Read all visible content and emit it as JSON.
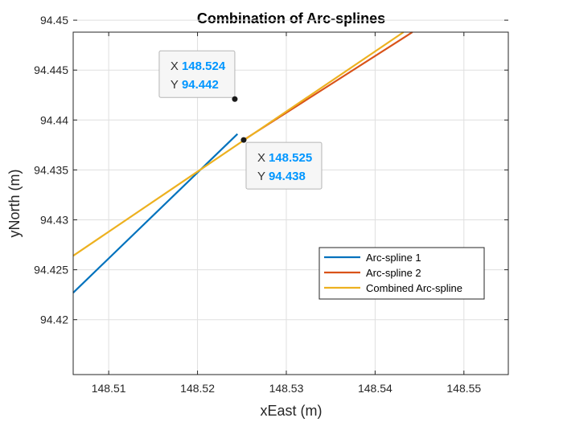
{
  "chart_data": {
    "type": "line",
    "title": "Combination of Arc-splines",
    "xlabel": "xEast (m)",
    "ylabel": "yNorth (m)",
    "xlim": [
      148.506,
      148.555
    ],
    "ylim": [
      94.4145,
      94.4488
    ],
    "xticks": [
      148.51,
      148.52,
      148.53,
      148.54,
      148.55
    ],
    "xtick_labels": [
      "148.51",
      "148.52",
      "148.53",
      "148.54",
      "148.55"
    ],
    "yticks": [
      94.42,
      94.425,
      94.43,
      94.435,
      94.44,
      94.445,
      94.45
    ],
    "ytick_labels": [
      "94.42",
      "94.425",
      "94.43",
      "94.435",
      "94.44",
      "94.445",
      "94.45"
    ],
    "grid": true,
    "legend_position": "lower-right",
    "series": [
      {
        "name": "Arc-spline 1",
        "color": "#0072bd",
        "x": [
          148.506,
          148.5245
        ],
        "y": [
          94.4227,
          94.4386
        ]
      },
      {
        "name": "Arc-spline 2",
        "color": "#d95319",
        "x": [
          148.5252,
          148.5442
        ],
        "y": [
          94.438,
          94.4488
        ]
      },
      {
        "name": "Combined Arc-spline",
        "color": "#edb120",
        "x": [
          148.506,
          148.5432
        ],
        "y": [
          94.4264,
          94.4488
        ]
      }
    ],
    "datatips": [
      {
        "x": 148.5242,
        "y": 94.4421,
        "x_text": "148.524",
        "y_text": "94.442",
        "x_key": "X",
        "y_key": "Y"
      },
      {
        "x": 148.5252,
        "y": 94.438,
        "x_text": "148.525",
        "y_text": "94.438",
        "x_key": "X",
        "y_key": "Y"
      }
    ]
  }
}
